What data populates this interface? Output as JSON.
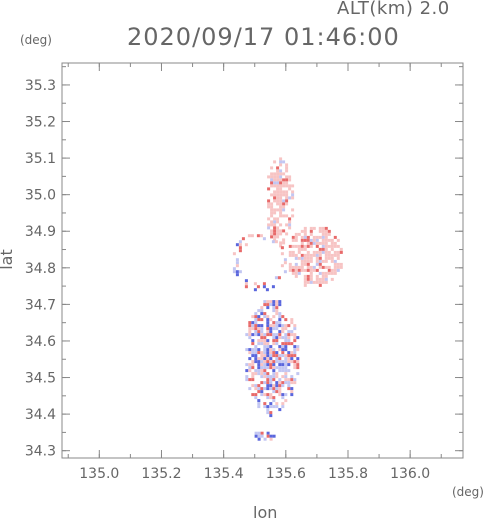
{
  "header": {
    "altitude_label": "ALT(km) 2.0",
    "timestamp": "2020/09/17 01:46:00"
  },
  "chart_data": {
    "type": "heatmap",
    "title": "2020/09/17 01:46:00",
    "subtitle": "ALT(km) 2.0",
    "xlabel": "lon",
    "ylabel": "lat",
    "x_unit": "(deg)",
    "y_unit": "(deg)",
    "xlim": [
      134.88,
      136.17
    ],
    "ylim": [
      34.28,
      35.36
    ],
    "x_ticks": [
      "135.0",
      "135.2",
      "135.4",
      "135.6",
      "135.8",
      "136.0"
    ],
    "y_ticks": [
      "34.3",
      "34.4",
      "34.5",
      "34.6",
      "34.7",
      "34.8",
      "34.9",
      "35.0",
      "35.1",
      "35.2",
      "35.3"
    ],
    "grid": false,
    "colors": {
      "positive": "#e86a6a",
      "light_positive": "#f7c4c4",
      "negative": "#5a66dd",
      "light_negative": "#c2c6f2",
      "axis": "#888888"
    },
    "regions": [
      {
        "name": "north-cluster",
        "lon": [
          135.53,
          135.62
        ],
        "lat": [
          34.86,
          35.11
        ],
        "sign": "positive"
      },
      {
        "name": "east-cluster",
        "lon": [
          135.6,
          135.78
        ],
        "lat": [
          34.75,
          34.92
        ],
        "sign": "positive"
      },
      {
        "name": "central-ring",
        "lon": [
          135.42,
          135.6
        ],
        "lat": [
          34.74,
          34.9
        ],
        "sign": "mixed"
      },
      {
        "name": "south-cluster",
        "lon": [
          135.46,
          135.64
        ],
        "lat": [
          34.4,
          34.72
        ],
        "sign": "mixed"
      },
      {
        "name": "southern-tip",
        "lon": [
          135.49,
          135.57
        ],
        "lat": [
          34.33,
          34.36
        ],
        "sign": "mixed"
      }
    ]
  }
}
